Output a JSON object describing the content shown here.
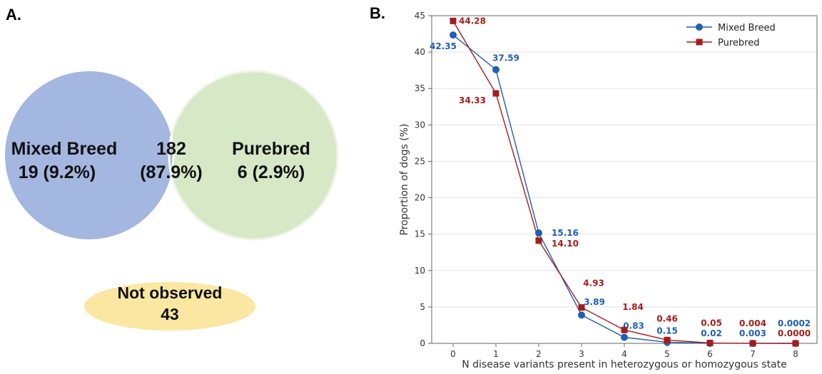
{
  "panel_a": {
    "letter": "A.",
    "left": {
      "name": "Mixed Breed",
      "stat": "19 (9.2%)",
      "color": "#a4b7e0"
    },
    "right": {
      "name": "Purebred",
      "stat": "6 (2.9%)",
      "color": "#d6e8c6"
    },
    "overlap": {
      "count": "182",
      "stat": "(87.9%)",
      "color": "#a0bdae"
    },
    "outside": {
      "label": "Not observed",
      "count": "43",
      "color": "#fbe7a1"
    }
  },
  "panel_b": {
    "letter": "B."
  },
  "chart_data": {
    "type": "line",
    "title": "",
    "xlabel": "N disease variants present in heterozygous or homozygous state",
    "ylabel": "Proportion of dogs (%)",
    "x": [
      0,
      1,
      2,
      3,
      4,
      5,
      6,
      7,
      8
    ],
    "xlim": [
      -0.5,
      8.5
    ],
    "ylim": [
      0,
      45
    ],
    "yticks": [
      0,
      5,
      10,
      15,
      20,
      25,
      30,
      35,
      40,
      45
    ],
    "grid": true,
    "legend_position": "top-right",
    "series": [
      {
        "name": "Mixed Breed",
        "marker": "circle",
        "color": "#1f5fb4",
        "values": [
          42.35,
          37.59,
          15.16,
          3.89,
          0.83,
          0.15,
          0.02,
          0.003,
          0.0002
        ],
        "labels": [
          "42.35",
          "37.59",
          "15.16",
          "3.89",
          "0.83",
          "0.15",
          "0.02",
          "0.003",
          "0.0002"
        ]
      },
      {
        "name": "Purebred",
        "marker": "square",
        "color": "#a51c1c",
        "values": [
          44.28,
          34.33,
          14.1,
          4.93,
          1.84,
          0.46,
          0.05,
          0.004,
          0.0
        ],
        "labels": [
          "44.28",
          "34.33",
          "14.10",
          "4.93",
          "1.84",
          "0.46",
          "0.05",
          "0.004",
          "0.0000"
        ]
      }
    ]
  }
}
